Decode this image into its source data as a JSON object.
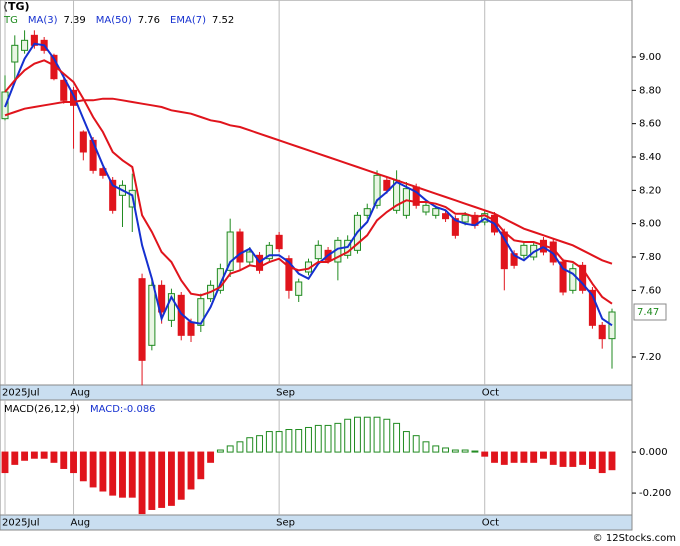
{
  "chart_data": [
    {
      "type": "candlestick",
      "title": "(TG)",
      "ticker": "TG",
      "categories": [
        "2025Jul",
        null,
        null,
        null,
        null,
        null,
        null,
        "Aug",
        null,
        null,
        null,
        null,
        null,
        null,
        null,
        null,
        null,
        null,
        null,
        null,
        null,
        null,
        null,
        null,
        null,
        null,
        null,
        null,
        "Sep",
        null,
        null,
        null,
        null,
        null,
        null,
        null,
        null,
        null,
        null,
        null,
        null,
        null,
        null,
        null,
        null,
        null,
        null,
        null,
        null,
        "Oct",
        null,
        null,
        null,
        null,
        null,
        null,
        null,
        null,
        null,
        null,
        null,
        null,
        null
      ],
      "ohlc": {
        "open": [
          8.63,
          8.97,
          9.04,
          9.13,
          9.1,
          9.01,
          8.86,
          8.8,
          8.55,
          8.5,
          8.33,
          8.26,
          8.17,
          8.1,
          7.67,
          7.27,
          7.63,
          7.42,
          7.57,
          7.41,
          7.39,
          7.55,
          7.6,
          7.72,
          7.95,
          7.77,
          7.81,
          7.79,
          7.93,
          7.79,
          7.57,
          7.71,
          7.79,
          7.84,
          7.77,
          7.81,
          7.84,
          8.05,
          8.11,
          8.26,
          8.08,
          8.05,
          8.22,
          8.07,
          8.05,
          8.06,
          8.03,
          8.01,
          8.05,
          8.01,
          8.05,
          7.95,
          7.82,
          7.81,
          7.8,
          7.9,
          7.89,
          7.77,
          7.6,
          7.75,
          7.6,
          7.39,
          7.31
        ],
        "high": [
          8.89,
          9.13,
          9.16,
          9.16,
          9.12,
          9.02,
          8.88,
          8.82,
          8.56,
          8.52,
          8.34,
          8.28,
          8.26,
          8.3,
          7.7,
          7.66,
          7.66,
          7.61,
          7.59,
          7.43,
          7.58,
          7.66,
          7.76,
          8.03,
          7.97,
          7.86,
          7.83,
          7.89,
          7.95,
          7.81,
          7.67,
          7.79,
          7.9,
          7.86,
          7.92,
          7.93,
          8.07,
          8.12,
          8.32,
          8.28,
          8.32,
          8.25,
          8.24,
          8.14,
          8.11,
          8.08,
          8.05,
          8.07,
          8.07,
          8.08,
          8.07,
          7.97,
          7.84,
          7.89,
          7.89,
          7.92,
          7.91,
          7.79,
          7.76,
          7.77,
          7.62,
          7.41,
          7.49
        ],
        "low": [
          8.62,
          8.86,
          9.02,
          9.05,
          9.02,
          8.86,
          8.72,
          8.45,
          8.38,
          8.3,
          8.27,
          8.06,
          7.98,
          7.95,
          7.03,
          7.24,
          7.4,
          7.38,
          7.3,
          7.29,
          7.35,
          7.53,
          7.58,
          7.68,
          7.72,
          7.75,
          7.7,
          7.77,
          7.83,
          7.55,
          7.53,
          7.69,
          7.77,
          7.76,
          7.66,
          7.79,
          7.82,
          8.03,
          8.09,
          8.18,
          8.06,
          8.03,
          8.09,
          8.05,
          8.03,
          8.01,
          7.91,
          7.99,
          7.97,
          7.99,
          7.93,
          7.6,
          7.73,
          7.79,
          7.78,
          7.81,
          7.75,
          7.57,
          7.58,
          7.58,
          7.37,
          7.25,
          7.13
        ],
        "close": [
          8.79,
          9.07,
          9.1,
          9.07,
          9.04,
          8.87,
          8.74,
          8.71,
          8.43,
          8.32,
          8.29,
          8.08,
          8.23,
          8.2,
          7.18,
          7.63,
          7.47,
          7.58,
          7.33,
          7.33,
          7.55,
          7.63,
          7.73,
          7.95,
          7.77,
          7.83,
          7.72,
          7.87,
          7.85,
          7.6,
          7.65,
          7.77,
          7.87,
          7.78,
          7.9,
          7.9,
          8.05,
          8.09,
          8.29,
          8.2,
          8.26,
          8.21,
          8.11,
          8.11,
          8.09,
          8.03,
          7.93,
          8.05,
          7.99,
          8.06,
          7.95,
          7.73,
          7.75,
          7.87,
          7.87,
          7.83,
          7.77,
          7.59,
          7.73,
          7.6,
          7.39,
          7.31,
          7.47
        ]
      },
      "up_color": "#1f8a1f",
      "down_color": "#e0141c",
      "series": [
        {
          "name": "MA(3)",
          "color": "#1530d0",
          "values": [
            8.7,
            8.85,
            8.99,
            9.08,
            9.07,
            8.99,
            8.88,
            8.77,
            8.63,
            8.49,
            8.35,
            8.23,
            8.2,
            8.17,
            7.87,
            7.67,
            7.43,
            7.56,
            7.46,
            7.41,
            7.4,
            7.5,
            7.64,
            7.77,
            7.82,
            7.85,
            7.77,
            7.81,
            7.81,
            7.77,
            7.7,
            7.67,
            7.76,
            7.81,
            7.85,
            7.86,
            7.95,
            8.01,
            8.14,
            8.19,
            8.25,
            8.22,
            8.19,
            8.14,
            8.1,
            8.08,
            8.02,
            8.0,
            7.99,
            8.03,
            8.0,
            7.91,
            7.81,
            7.78,
            7.83,
            7.86,
            7.82,
            7.73,
            7.7,
            7.64,
            7.57,
            7.43,
            7.39
          ]
        },
        {
          "name": "MA(50)",
          "color": "#e0141c",
          "values": [
            8.65,
            8.67,
            8.69,
            8.7,
            8.71,
            8.72,
            8.73,
            8.73,
            8.74,
            8.74,
            8.75,
            8.75,
            8.74,
            8.73,
            8.72,
            8.71,
            8.7,
            8.68,
            8.67,
            8.66,
            8.64,
            8.62,
            8.61,
            8.59,
            8.58,
            8.56,
            8.54,
            8.52,
            8.5,
            8.48,
            8.46,
            8.44,
            8.42,
            8.4,
            8.38,
            8.36,
            8.34,
            8.32,
            8.3,
            8.28,
            8.26,
            8.24,
            8.22,
            8.2,
            8.18,
            8.16,
            8.14,
            8.12,
            8.1,
            8.08,
            8.06,
            8.03,
            8.0,
            7.97,
            7.95,
            7.93,
            7.91,
            7.89,
            7.87,
            7.84,
            7.81,
            7.78,
            7.76
          ]
        },
        {
          "name": "EMA(7)",
          "color": "#e0141c",
          "values": [
            8.79,
            8.86,
            8.92,
            8.96,
            8.98,
            8.95,
            8.9,
            8.85,
            8.75,
            8.64,
            8.55,
            8.43,
            8.38,
            8.34,
            8.05,
            7.95,
            7.83,
            7.77,
            7.66,
            7.58,
            7.57,
            7.59,
            7.62,
            7.7,
            7.72,
            7.75,
            7.74,
            7.77,
            7.79,
            7.74,
            7.72,
            7.73,
            7.77,
            7.77,
            7.8,
            7.83,
            7.88,
            7.93,
            8.02,
            8.07,
            8.11,
            8.14,
            8.13,
            8.13,
            8.12,
            8.1,
            8.06,
            8.06,
            8.04,
            8.05,
            8.02,
            7.95,
            7.9,
            7.89,
            7.89,
            7.87,
            7.85,
            7.78,
            7.77,
            7.73,
            7.64,
            7.56,
            7.52
          ]
        }
      ],
      "ylim": [
        7.032,
        9.342
      ],
      "yticks": [
        {
          "value": 7.2,
          "label": "7.20"
        },
        {
          "value": 7.6,
          "label": "7.60"
        },
        {
          "value": 7.8,
          "label": "7.80"
        },
        {
          "value": 8.0,
          "label": "8.00"
        },
        {
          "value": 8.2,
          "label": "8.20"
        },
        {
          "value": 8.4,
          "label": "8.40"
        },
        {
          "value": 8.6,
          "label": "8.60"
        },
        {
          "value": 8.8,
          "label": "8.80"
        },
        {
          "value": 9.0,
          "label": "9.00"
        }
      ]
    },
    {
      "type": "histogram-bars",
      "title": "MACD(26,12,9)",
      "value_name": "MACD:",
      "categories": [
        "2025Jul",
        null,
        null,
        null,
        null,
        null,
        null,
        "Aug",
        null,
        null,
        null,
        null,
        null,
        null,
        null,
        null,
        null,
        null,
        null,
        null,
        null,
        null,
        null,
        null,
        null,
        null,
        null,
        null,
        "Sep",
        null,
        null,
        null,
        null,
        null,
        null,
        null,
        null,
        null,
        null,
        null,
        null,
        null,
        null,
        null,
        null,
        null,
        null,
        null,
        null,
        "Oct",
        null,
        null,
        null,
        null,
        null,
        null,
        null,
        null,
        null,
        null,
        null,
        null,
        null
      ],
      "values": [
        -0.1,
        -0.06,
        -0.04,
        -0.03,
        -0.03,
        -0.05,
        -0.08,
        -0.1,
        -0.14,
        -0.17,
        -0.19,
        -0.21,
        -0.22,
        -0.22,
        -0.3,
        -0.28,
        -0.27,
        -0.26,
        -0.23,
        -0.18,
        -0.13,
        -0.05,
        0.01,
        0.03,
        0.05,
        0.07,
        0.08,
        0.1,
        0.1,
        0.11,
        0.11,
        0.12,
        0.13,
        0.13,
        0.14,
        0.16,
        0.17,
        0.17,
        0.17,
        0.16,
        0.14,
        0.1,
        0.08,
        0.05,
        0.03,
        0.02,
        0.01,
        0.01,
        0.005,
        -0.02,
        -0.05,
        -0.06,
        -0.05,
        -0.05,
        -0.05,
        -0.03,
        -0.06,
        -0.07,
        -0.07,
        -0.06,
        -0.08,
        -0.1,
        -0.086
      ],
      "up_color": "#1f8a1f",
      "down_color": "#e0141c",
      "ylim": [
        -0.307,
        0.254
      ],
      "yticks": [
        {
          "value": -0.2,
          "label": "-0.200"
        },
        {
          "value": 0,
          "label": "0.000"
        }
      ]
    }
  ],
  "footer": "© 12Stocks.com"
}
